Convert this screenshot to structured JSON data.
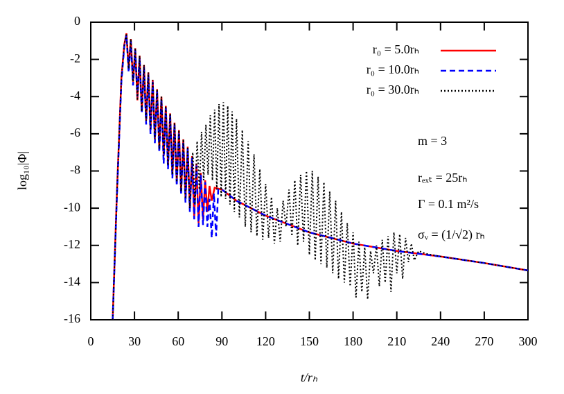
{
  "chart_data": {
    "type": "line",
    "xlabel": "t/rₕ",
    "ylabel": "log₁₀|Φ|",
    "xlim": [
      0,
      300
    ],
    "xticks": [
      0,
      30,
      60,
      90,
      120,
      150,
      180,
      210,
      240,
      270,
      300
    ],
    "ylim": [
      -16,
      0
    ],
    "yticks": [
      0,
      -2,
      -4,
      -6,
      -8,
      -10,
      -12,
      -14,
      -16
    ],
    "legend": "top-right",
    "annotations": [
      "m = 3",
      "rₑₓₜ = 25rₕ",
      "Γ = 0.1 m²/s",
      "σᵥ = (1/√2) rₕ"
    ],
    "series": [
      {
        "name": "r₀ = 5.0rₕ",
        "color": "#ff0000",
        "dash": "solid",
        "x": [
          15,
          18,
          21,
          23,
          24.5,
          26,
          27.5,
          29,
          30.5,
          32,
          33.5,
          35,
          36.5,
          38,
          39.5,
          41,
          42.5,
          44,
          45.5,
          47,
          48.5,
          50,
          51.5,
          53,
          54.5,
          56,
          57.5,
          59,
          60.5,
          62,
          63.5,
          65,
          66.5,
          68,
          69.5,
          71,
          72.5,
          74,
          75.5,
          77,
          78.5,
          80,
          81.5,
          83,
          85,
          90,
          100,
          120,
          150,
          180,
          210,
          240,
          270,
          300
        ],
        "values": [
          -16,
          -9,
          -3,
          -1.2,
          -0.6,
          -2.5,
          -0.9,
          -3.2,
          -1.4,
          -4.2,
          -1.8,
          -4.8,
          -2.3,
          -5.3,
          -2.7,
          -5.8,
          -3.1,
          -6.3,
          -3.6,
          -6.8,
          -4.0,
          -7.2,
          -4.5,
          -7.7,
          -4.9,
          -8.2,
          -5.4,
          -8.6,
          -5.8,
          -9.1,
          -6.3,
          -9.5,
          -6.7,
          -10,
          -7.2,
          -10.5,
          -7.6,
          -10.8,
          -8.1,
          -10.6,
          -8.5,
          -10.2,
          -8.8,
          -9.6,
          -8.9,
          -9.0,
          -9.6,
          -10.4,
          -11.3,
          -11.9,
          -12.3,
          -12.6,
          -12.95,
          -13.35
        ]
      },
      {
        "name": "r₀ = 10.0rₕ",
        "color": "#0000ff",
        "dash": "dashed",
        "x": [
          15,
          18,
          21,
          23,
          24.5,
          26,
          27.5,
          29,
          30.5,
          32,
          33.5,
          35,
          36.5,
          38,
          39.5,
          41,
          42.5,
          44,
          45.5,
          47,
          48.5,
          50,
          51.5,
          53,
          54.5,
          56,
          57.5,
          59,
          60.5,
          62,
          63.5,
          65,
          66.5,
          68,
          69.5,
          71,
          72.5,
          74,
          75.5,
          77,
          78.5,
          80,
          81.5,
          83,
          84.5,
          86,
          87.5,
          90,
          100,
          120,
          150,
          180,
          210,
          240,
          270,
          300
        ],
        "values": [
          -16,
          -9.2,
          -3.2,
          -1.3,
          -0.7,
          -2.7,
          -1.0,
          -3.4,
          -1.5,
          -4.0,
          -1.9,
          -4.9,
          -2.4,
          -5.5,
          -2.8,
          -6.0,
          -3.2,
          -6.5,
          -3.7,
          -7.0,
          -4.1,
          -7.6,
          -4.6,
          -7.9,
          -5.0,
          -8.4,
          -5.5,
          -8.8,
          -5.9,
          -9.3,
          -6.4,
          -9.7,
          -6.8,
          -10.2,
          -7.3,
          -10.6,
          -7.7,
          -11.0,
          -8.2,
          -10.9,
          -8.6,
          -11.0,
          -9.5,
          -11.6,
          -9.2,
          -11.5,
          -9.0,
          -9.0,
          -9.6,
          -10.4,
          -11.3,
          -11.9,
          -12.3,
          -12.6,
          -12.95,
          -13.35
        ]
      },
      {
        "name": "r₀ = 30.0rₕ",
        "color": "#000000",
        "dash": "dotted",
        "x": [
          15,
          18,
          21,
          23,
          24.5,
          26,
          27.5,
          29,
          30.5,
          32,
          33.5,
          35,
          36.5,
          38,
          39.5,
          41,
          42.5,
          44,
          45.5,
          47,
          48.5,
          50,
          51.5,
          53,
          54.5,
          56,
          57.5,
          59,
          60.5,
          62,
          63.5,
          65,
          66.5,
          68,
          70,
          71.5,
          73,
          74.5,
          76,
          77.5,
          79,
          80.5,
          82,
          83.5,
          85,
          86.5,
          88,
          89.5,
          91,
          92.5,
          94,
          95.5,
          97,
          98.5,
          100,
          102,
          104,
          106,
          108,
          110,
          112,
          114,
          116,
          118,
          120,
          122,
          124,
          126,
          128,
          130,
          132,
          134,
          136,
          138,
          140,
          142,
          144,
          146,
          148,
          150,
          152,
          154,
          156,
          158,
          160,
          162,
          164,
          166,
          168,
          170,
          172,
          174,
          176,
          178,
          180,
          182,
          184,
          186,
          188,
          190,
          192,
          194,
          196,
          198,
          200,
          202,
          204,
          206,
          208,
          210,
          212,
          214,
          216,
          218,
          220,
          222,
          225,
          230,
          240,
          270,
          300
        ],
        "values": [
          -16,
          -9,
          -3,
          -1.2,
          -0.6,
          -2.5,
          -0.9,
          -3.2,
          -1.4,
          -4.2,
          -1.8,
          -4.8,
          -2.3,
          -5.3,
          -2.7,
          -5.8,
          -3.1,
          -6.3,
          -3.6,
          -6.8,
          -4.0,
          -7.2,
          -4.5,
          -7.7,
          -4.9,
          -8.2,
          -5.4,
          -8.6,
          -5.8,
          -9.1,
          -6.3,
          -9.5,
          -6.7,
          -10,
          -7.0,
          -9.8,
          -6.4,
          -9.0,
          -5.9,
          -8.5,
          -5.5,
          -8.2,
          -5.0,
          -8.5,
          -4.7,
          -9,
          -4.4,
          -9.4,
          -4.3,
          -9.5,
          -4.5,
          -9.8,
          -4.8,
          -10.2,
          -5.2,
          -10.5,
          -5.8,
          -11,
          -6.4,
          -11.3,
          -7.1,
          -11.5,
          -7.9,
          -11.7,
          -8.7,
          -11.6,
          -9.4,
          -11.9,
          -10.0,
          -11.8,
          -9.6,
          -11.0,
          -9.0,
          -11.5,
          -8.5,
          -12.0,
          -8.2,
          -11.8,
          -8.0,
          -12.5,
          -8.0,
          -12.8,
          -8.3,
          -13,
          -8.6,
          -13.2,
          -9.1,
          -13.5,
          -9.6,
          -13.8,
          -10.2,
          -14.0,
          -10.8,
          -14.2,
          -11.3,
          -14.8,
          -11.8,
          -14.5,
          -12.1,
          -14.9,
          -12.3,
          -13.5,
          -12.0,
          -14.2,
          -11.7,
          -14.0,
          -11.5,
          -14.5,
          -11.3,
          -13.5,
          -11.4,
          -13.8,
          -11.6,
          -12.9,
          -11.9,
          -12.8,
          -12.3,
          -12.45,
          -12.6,
          -12.95,
          -13.35
        ]
      }
    ]
  }
}
